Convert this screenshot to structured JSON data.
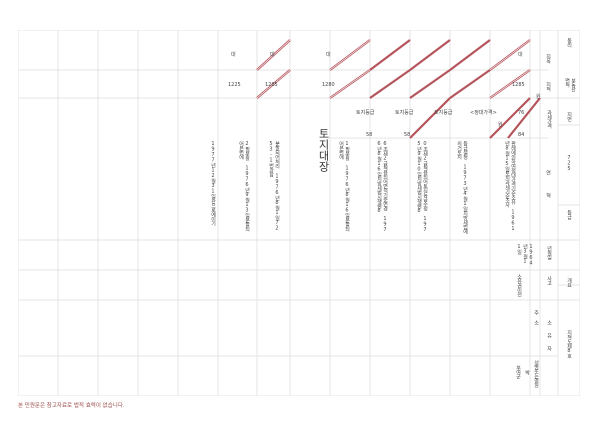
{
  "document": {
    "title": "토지대장",
    "footer_note": "본 민원문은 참고자료로 법적 효력이 없습니다.",
    "strike_color": "#b5545c"
  },
  "header_labels": {
    "jimok": "지목",
    "jijeok": "지적",
    "gwase": "과세가격",
    "yeonhyeok": "연혁",
    "dongri": "동리",
    "area_unit": "부동산 면적",
    "jibeon": "지번",
    "jibeon_value": "725",
    "deunggeum": "등급",
    "nyeonwolil": "년월일",
    "sago": "사고",
    "gaeyo": "개요",
    "juso": "주소",
    "soyuja": "소유자",
    "seongmyeong": "성명또는명칭",
    "jijeok_num": "지적도제8호"
  },
  "row_jimok": [
    "대",
    "대",
    "대",
    "대"
  ],
  "row_area": [
    "1225",
    "1285",
    "1280",
    "1285"
  ],
  "row_grade": {
    "labels": [
      "토지등급",
      "토지등급",
      "토지등급",
      "<정대가격>"
    ],
    "values": [
      "58",
      "58",
      "76",
      "84"
    ],
    "unit": "원"
  },
  "history": [
    "1977년12월31일관으로예이기",
    "2필부활 1976년9월13일분할되어본번에",
    "분할되어처리 1976년8월1일7253-1번과합",
    "1필부활 1976년8월16일분할되어본번에",
    "6조제2급적용되어면적기준변경 1976년8월16일지방세법시행령8",
    "0조제2급적용되어토지등급수정 1975년9월10일지방세법시행령8",
    "등급설정 1973년4월1일지방세법에의거토지",
    "판례에의하여정대가격기준소유 1961년8월15일토지과세기준조사"
  ],
  "owner": {
    "date": "1964년3월11일",
    "reason": "소유권이전",
    "address": "부여군",
    "name": "박"
  }
}
